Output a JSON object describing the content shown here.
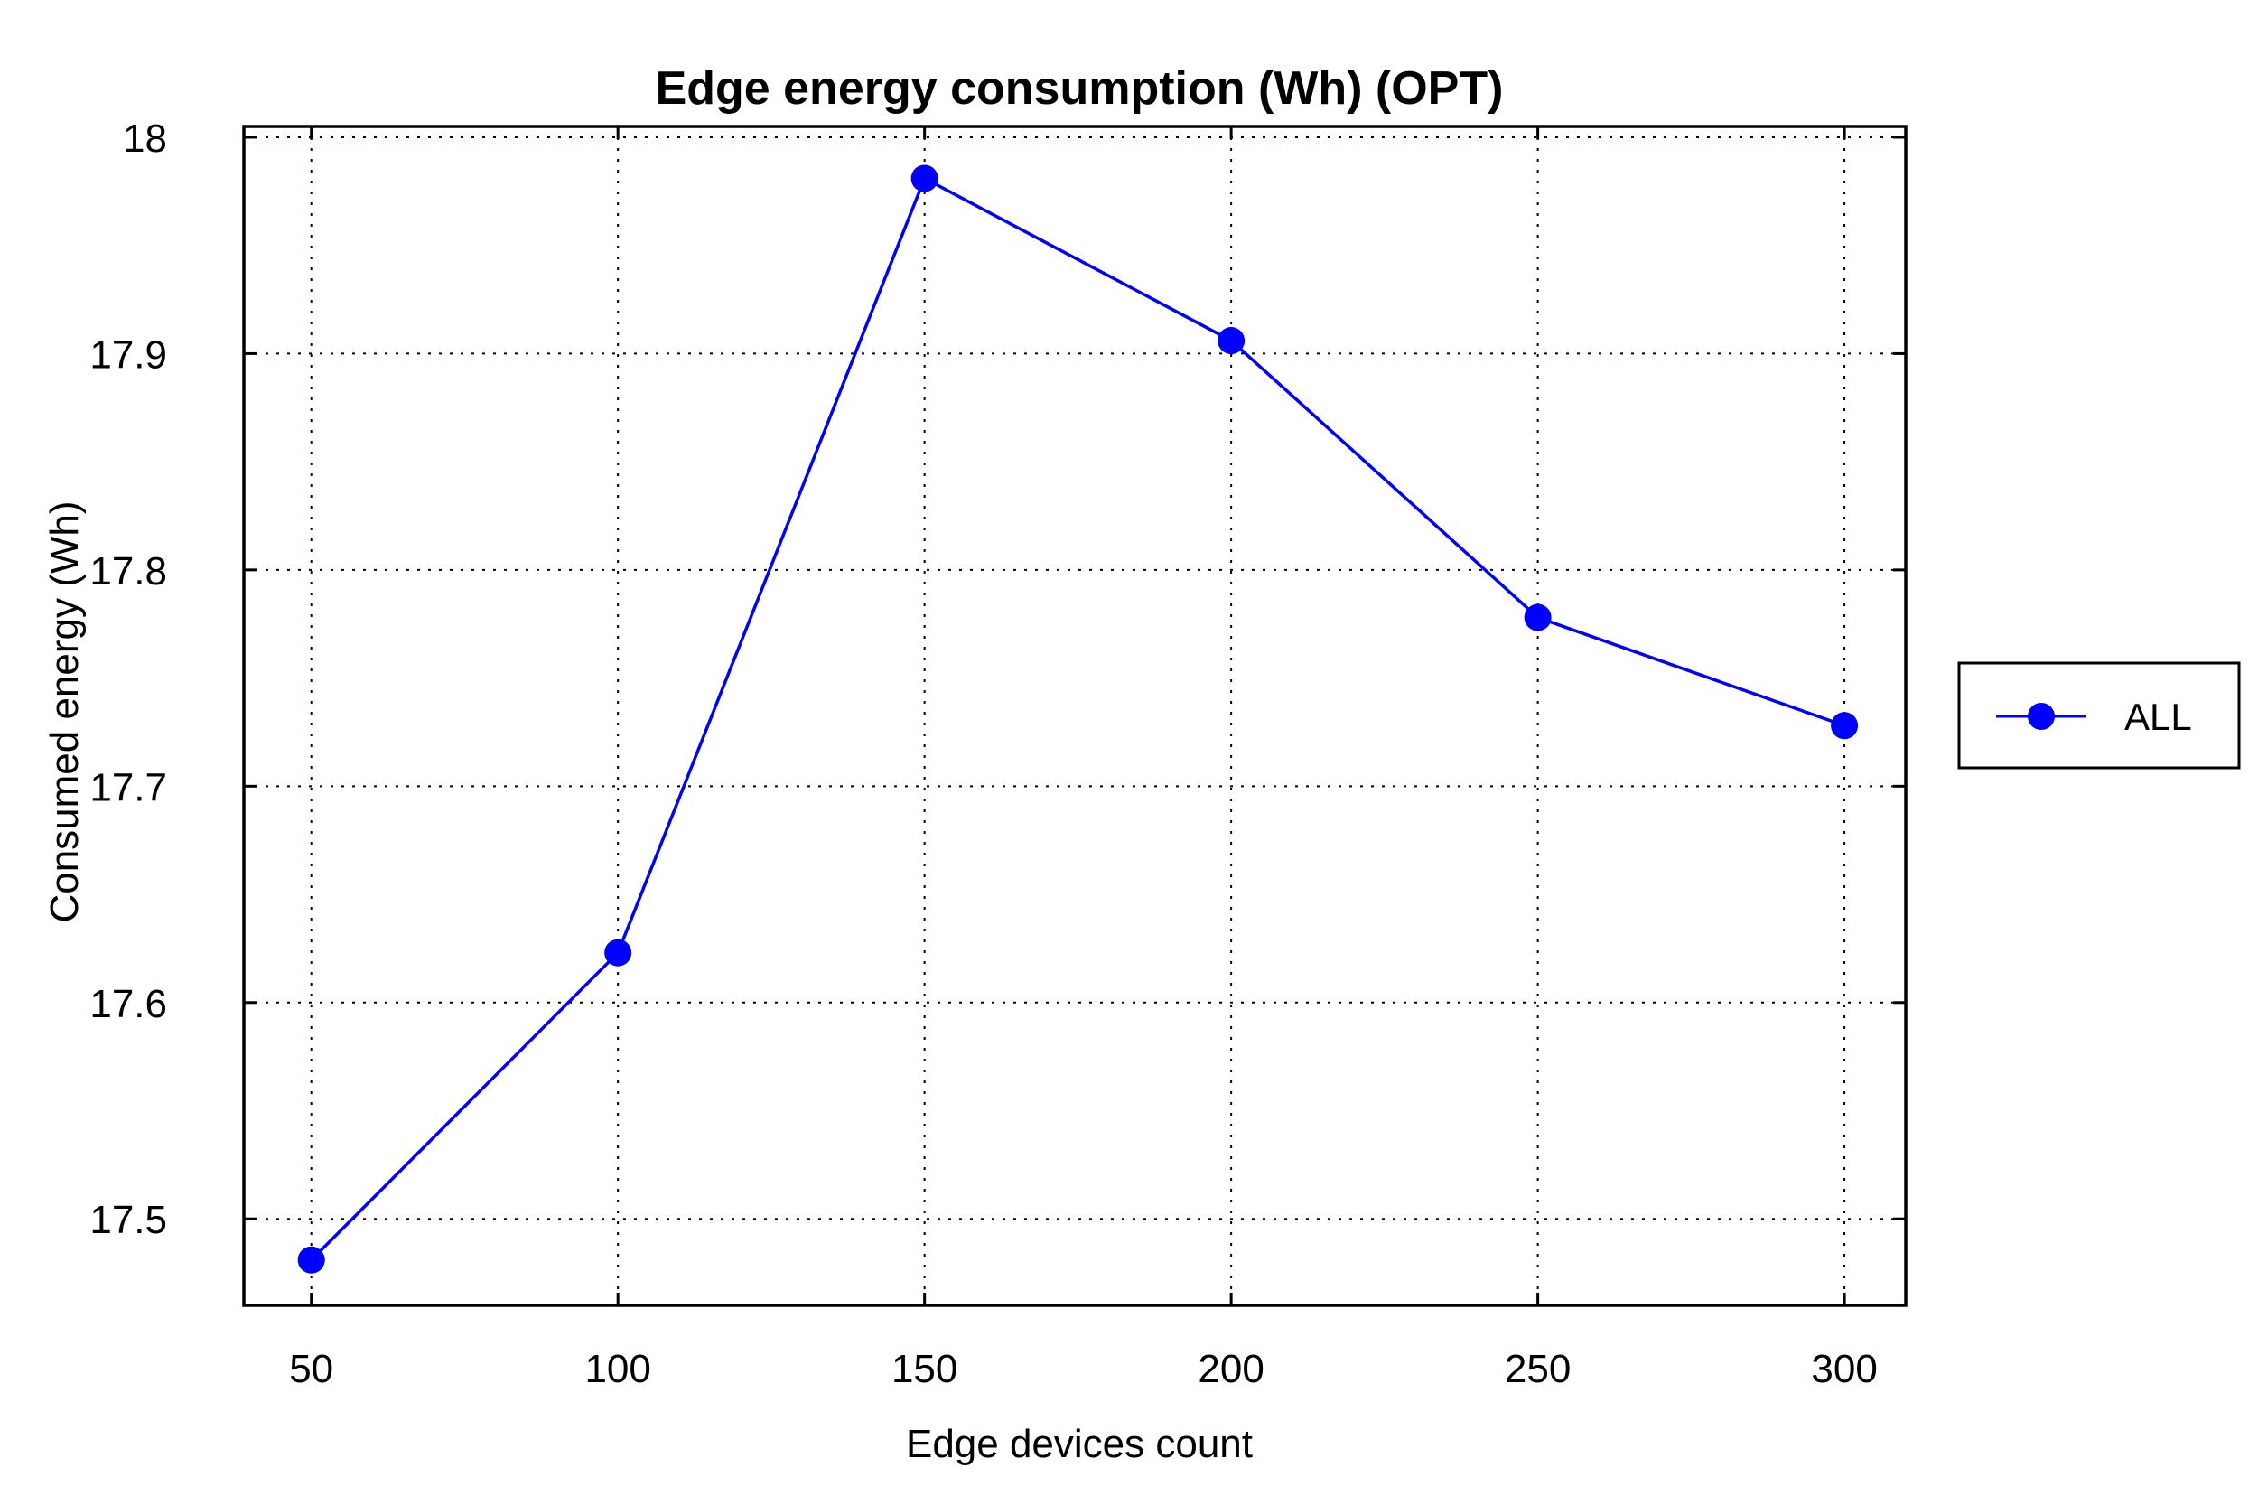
{
  "chart_data": {
    "type": "line",
    "title": "Edge energy consumption (Wh) (OPT)",
    "xlabel": "Edge devices count",
    "ylabel": "Consumed energy (Wh)",
    "x": [
      50,
      100,
      150,
      200,
      250,
      300
    ],
    "xticks": [
      "50",
      "100",
      "150",
      "200",
      "250",
      "300"
    ],
    "yticks": [
      "17.5",
      "17.6",
      "17.7",
      "17.8",
      "17.9",
      "18"
    ],
    "xlim": [
      39,
      310
    ],
    "ylim": [
      17.46,
      18.005
    ],
    "grid": true,
    "legend_position": "right-outside",
    "series": [
      {
        "name": "ALL",
        "color": "#0000ff",
        "marker": "circle",
        "values": [
          17.481,
          17.623,
          17.981,
          17.906,
          17.778,
          17.728
        ]
      }
    ]
  }
}
